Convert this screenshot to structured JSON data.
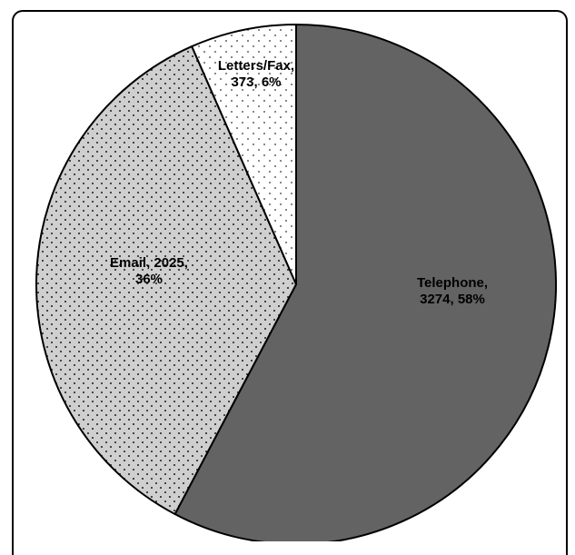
{
  "chart_data": {
    "type": "pie",
    "title": "",
    "slices": [
      {
        "label": "Telephone",
        "value": 3274,
        "percent": 58,
        "label_lines": [
          "Telephone,",
          "3274, 58%"
        ],
        "fill": "#636363",
        "pattern": "solid"
      },
      {
        "label": "Email",
        "value": 2025,
        "percent": 36,
        "label_lines": [
          "Email, 2025,",
          "36%"
        ],
        "fill": "#cfcfcf",
        "pattern": "dense-dots"
      },
      {
        "label": "Letters/Fax",
        "value": 373,
        "percent": 6,
        "label_lines": [
          "Letters/Fax,",
          "373, 6%"
        ],
        "fill": "#ffffff",
        "pattern": "sparse-dots"
      }
    ],
    "start_angle": "12 o'clock",
    "direction": "clockwise",
    "legend": "none"
  }
}
